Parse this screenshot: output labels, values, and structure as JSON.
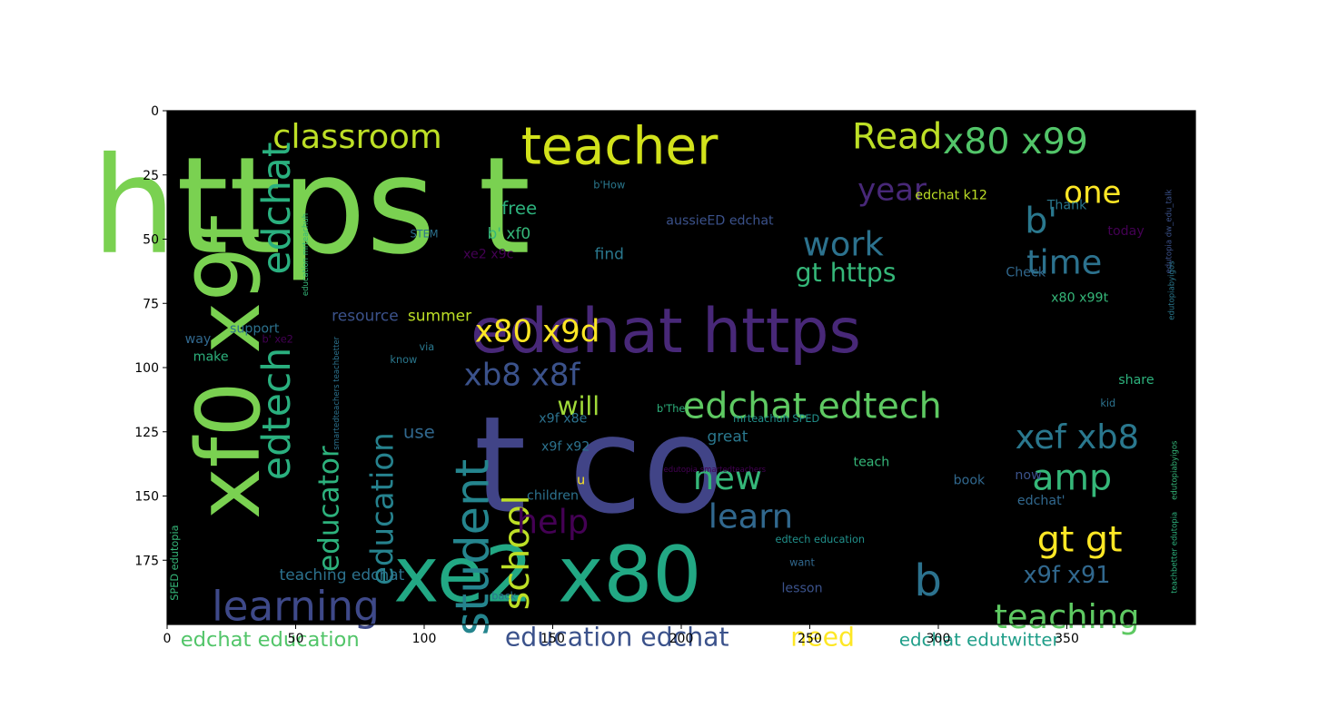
{
  "chart_data": {
    "type": "wordcloud",
    "title": "",
    "xlabel": "",
    "ylabel": "",
    "xlim": [
      0,
      400
    ],
    "ylim": [
      200,
      0
    ],
    "xticks": [
      0,
      50,
      100,
      150,
      200,
      250,
      300,
      350
    ],
    "yticks": [
      0,
      25,
      50,
      75,
      100,
      125,
      150,
      175
    ],
    "background": "#000000",
    "words": [
      {
        "text": "https t",
        "x": 56,
        "y": 37,
        "size": 52,
        "color": "#7ad151",
        "rotate": 0
      },
      {
        "text": "t co",
        "x": 168,
        "y": 138,
        "size": 52,
        "color": "#414487",
        "rotate": 0
      },
      {
        "text": "xe2 x80",
        "x": 148,
        "y": 181,
        "size": 30,
        "color": "#22a884",
        "rotate": 0
      },
      {
        "text": "edchat https",
        "x": 194,
        "y": 86,
        "size": 24,
        "color": "#482878",
        "rotate": 0
      },
      {
        "text": "xf0 x9f",
        "x": 24,
        "y": 100,
        "size": 34,
        "color": "#7ad151",
        "rotate": -90
      },
      {
        "text": "teacher",
        "x": 176,
        "y": 14,
        "size": 20,
        "color": "#d2e21b",
        "rotate": 0
      },
      {
        "text": "classroom",
        "x": 74,
        "y": 10,
        "size": 13,
        "color": "#bddf26",
        "rotate": 0
      },
      {
        "text": "Read",
        "x": 284,
        "y": 10,
        "size": 14,
        "color": "#bddf26",
        "rotate": 0
      },
      {
        "text": "x80 x99",
        "x": 330,
        "y": 12,
        "size": 14,
        "color": "#52c569",
        "rotate": 0
      },
      {
        "text": "edchat",
        "x": 43,
        "y": 38,
        "size": 15,
        "color": "#2ab07f",
        "rotate": -90
      },
      {
        "text": "edtech",
        "x": 43,
        "y": 118,
        "size": 15,
        "color": "#2ab07f",
        "rotate": -90
      },
      {
        "text": "b'",
        "x": 340,
        "y": 43,
        "size": 14,
        "color": "#2a788e",
        "rotate": 0
      },
      {
        "text": "year",
        "x": 282,
        "y": 31,
        "size": 12,
        "color": "#482878",
        "rotate": 0
      },
      {
        "text": "one",
        "x": 360,
        "y": 32,
        "size": 12,
        "color": "#fde725",
        "rotate": 0
      },
      {
        "text": "work",
        "x": 263,
        "y": 52,
        "size": 13,
        "color": "#2c728e",
        "rotate": 0
      },
      {
        "text": "time",
        "x": 349,
        "y": 59,
        "size": 13,
        "color": "#2c728e",
        "rotate": 0
      },
      {
        "text": "gt https",
        "x": 264,
        "y": 63,
        "size": 10,
        "color": "#35b779",
        "rotate": 0
      },
      {
        "text": "x80 x9d",
        "x": 144,
        "y": 86,
        "size": 12,
        "color": "#fde725",
        "rotate": 0
      },
      {
        "text": "xb8 x8f",
        "x": 138,
        "y": 103,
        "size": 12,
        "color": "#3b528b",
        "rotate": 0
      },
      {
        "text": "will",
        "x": 160,
        "y": 115,
        "size": 10,
        "color": "#a0da39",
        "rotate": 0
      },
      {
        "text": "edchat edtech",
        "x": 251,
        "y": 115,
        "size": 14,
        "color": "#5ec962",
        "rotate": 0
      },
      {
        "text": "student",
        "x": 119,
        "y": 170,
        "size": 18,
        "color": "#25858e",
        "rotate": -90
      },
      {
        "text": "school",
        "x": 136,
        "y": 172,
        "size": 14,
        "color": "#bddf26",
        "rotate": -90
      },
      {
        "text": "educator",
        "x": 63,
        "y": 155,
        "size": 11,
        "color": "#2db27d",
        "rotate": -90
      },
      {
        "text": "education",
        "x": 84,
        "y": 155,
        "size": 12,
        "color": "#26828e",
        "rotate": -90
      },
      {
        "text": "xef xb8",
        "x": 354,
        "y": 127,
        "size": 13,
        "color": "#2a788e",
        "rotate": 0
      },
      {
        "text": "amp",
        "x": 352,
        "y": 143,
        "size": 14,
        "color": "#35b779",
        "rotate": 0
      },
      {
        "text": "new",
        "x": 218,
        "y": 143,
        "size": 13,
        "color": "#35b779",
        "rotate": 0
      },
      {
        "text": "learn",
        "x": 227,
        "y": 158,
        "size": 13,
        "color": "#31688e",
        "rotate": 0
      },
      {
        "text": "help",
        "x": 150,
        "y": 160,
        "size": 13,
        "color": "#440154",
        "rotate": 0
      },
      {
        "text": "gt gt",
        "x": 355,
        "y": 167,
        "size": 14,
        "color": "#fde725",
        "rotate": 0
      },
      {
        "text": "b",
        "x": 296,
        "y": 183,
        "size": 17,
        "color": "#2c728e",
        "rotate": 0
      },
      {
        "text": "x9f x91",
        "x": 350,
        "y": 181,
        "size": 9,
        "color": "#31688e",
        "rotate": 0
      },
      {
        "text": "teaching",
        "x": 350,
        "y": 197,
        "size": 13,
        "color": "#5ec962",
        "rotate": 0
      },
      {
        "text": "learning",
        "x": 50,
        "y": 193,
        "size": 16,
        "color": "#3e4989",
        "rotate": 0
      },
      {
        "text": "education edchat",
        "x": 175,
        "y": 205,
        "size": 10,
        "color": "#3b528b",
        "rotate": 0
      },
      {
        "text": "edchat education",
        "x": 40,
        "y": 206,
        "size": 8,
        "color": "#52c569",
        "rotate": 0
      },
      {
        "text": "need",
        "x": 255,
        "y": 205,
        "size": 10,
        "color": "#fde725",
        "rotate": 0
      },
      {
        "text": "edchat edutwitter",
        "x": 316,
        "y": 206,
        "size": 7,
        "color": "#1f9e89",
        "rotate": 0
      },
      {
        "text": "teaching edchat",
        "x": 68,
        "y": 181,
        "size": 6,
        "color": "#2c728e",
        "rotate": 0
      },
      {
        "text": "free",
        "x": 137,
        "y": 38,
        "size": 7,
        "color": "#2db27d",
        "rotate": 0
      },
      {
        "text": "b' xf0",
        "x": 133,
        "y": 48,
        "size": 6,
        "color": "#35b779",
        "rotate": 0
      },
      {
        "text": "find",
        "x": 172,
        "y": 56,
        "size": 6,
        "color": "#2a788e",
        "rotate": 0
      },
      {
        "text": "xe2 x9c",
        "x": 125,
        "y": 56,
        "size": 5,
        "color": "#440154",
        "rotate": 0
      },
      {
        "text": "STEM",
        "x": 100,
        "y": 48,
        "size": 4,
        "color": "#2c728e",
        "rotate": 0
      },
      {
        "text": "b'How",
        "x": 172,
        "y": 29,
        "size": 4,
        "color": "#2a788e",
        "rotate": 0
      },
      {
        "text": "aussieED edchat",
        "x": 215,
        "y": 43,
        "size": 5,
        "color": "#3b528b",
        "rotate": 0
      },
      {
        "text": "edchat k12",
        "x": 305,
        "y": 33,
        "size": 5,
        "color": "#bddf26",
        "rotate": 0
      },
      {
        "text": "Thank",
        "x": 350,
        "y": 37,
        "size": 5,
        "color": "#2a788e",
        "rotate": 0
      },
      {
        "text": "today",
        "x": 373,
        "y": 47,
        "size": 5,
        "color": "#440154",
        "rotate": 0
      },
      {
        "text": "Check",
        "x": 334,
        "y": 63,
        "size": 5,
        "color": "#31688e",
        "rotate": 0
      },
      {
        "text": "x80 x99t",
        "x": 355,
        "y": 73,
        "size": 5,
        "color": "#35b779",
        "rotate": 0
      },
      {
        "text": "resource",
        "x": 77,
        "y": 80,
        "size": 6,
        "color": "#3b528b",
        "rotate": 0
      },
      {
        "text": "summer",
        "x": 106,
        "y": 80,
        "size": 6,
        "color": "#bddf26",
        "rotate": 0
      },
      {
        "text": "support",
        "x": 34,
        "y": 85,
        "size": 5,
        "color": "#2c728e",
        "rotate": 0
      },
      {
        "text": "way",
        "x": 12,
        "y": 89,
        "size": 5,
        "color": "#31688e",
        "rotate": 0
      },
      {
        "text": "b' xe2",
        "x": 43,
        "y": 89,
        "size": 4,
        "color": "#440154",
        "rotate": 0
      },
      {
        "text": "via",
        "x": 101,
        "y": 92,
        "size": 4,
        "color": "#2a788e",
        "rotate": 0
      },
      {
        "text": "make",
        "x": 17,
        "y": 96,
        "size": 5,
        "color": "#2db27d",
        "rotate": 0
      },
      {
        "text": "know",
        "x": 92,
        "y": 97,
        "size": 4,
        "color": "#2a788e",
        "rotate": 0
      },
      {
        "text": "use",
        "x": 98,
        "y": 125,
        "size": 7,
        "color": "#31688e",
        "rotate": 0
      },
      {
        "text": "x9f x8e",
        "x": 154,
        "y": 120,
        "size": 5,
        "color": "#2c728e",
        "rotate": 0
      },
      {
        "text": "b'The",
        "x": 196,
        "y": 116,
        "size": 4,
        "color": "#2db27d",
        "rotate": 0
      },
      {
        "text": "mrteachuh SPED",
        "x": 237,
        "y": 120,
        "size": 4,
        "color": "#21918c",
        "rotate": 0
      },
      {
        "text": "share",
        "x": 377,
        "y": 105,
        "size": 5,
        "color": "#2db27d",
        "rotate": 0
      },
      {
        "text": "kid",
        "x": 366,
        "y": 114,
        "size": 4,
        "color": "#2c728e",
        "rotate": 0
      },
      {
        "text": "x9f x92",
        "x": 155,
        "y": 131,
        "size": 5,
        "color": "#2c728e",
        "rotate": 0
      },
      {
        "text": "great",
        "x": 218,
        "y": 127,
        "size": 6,
        "color": "#2a788e",
        "rotate": 0
      },
      {
        "text": "teach",
        "x": 274,
        "y": 137,
        "size": 5,
        "color": "#35b779",
        "rotate": 0
      },
      {
        "text": "u",
        "x": 161,
        "y": 144,
        "size": 5,
        "color": "#fde725",
        "rotate": 0
      },
      {
        "text": "edutopia smartedteachers",
        "x": 213,
        "y": 140,
        "size": 3,
        "color": "#440154",
        "rotate": 0
      },
      {
        "text": "book",
        "x": 312,
        "y": 144,
        "size": 5,
        "color": "#31688e",
        "rotate": 0
      },
      {
        "text": "now",
        "x": 335,
        "y": 142,
        "size": 5,
        "color": "#3b528b",
        "rotate": 0
      },
      {
        "text": "children",
        "x": 150,
        "y": 150,
        "size": 5,
        "color": "#2c728e",
        "rotate": 0
      },
      {
        "text": "edchat'",
        "x": 340,
        "y": 152,
        "size": 5,
        "color": "#31688e",
        "rotate": 0
      },
      {
        "text": "edtech education",
        "x": 254,
        "y": 167,
        "size": 4,
        "color": "#21918c",
        "rotate": 0
      },
      {
        "text": "want",
        "x": 247,
        "y": 176,
        "size": 4,
        "color": "#31688e",
        "rotate": 0
      },
      {
        "text": "lesson",
        "x": 247,
        "y": 186,
        "size": 5,
        "color": "#3b528b",
        "rotate": 0
      },
      {
        "text": "back",
        "x": 131,
        "y": 189,
        "size": 4,
        "color": "#2c728e",
        "rotate": 0
      },
      {
        "text": "SPED edutopia",
        "x": 3,
        "y": 176,
        "size": 4,
        "color": "#35b779",
        "rotate": -90
      },
      {
        "text": "education mrteachuh",
        "x": 54,
        "y": 56,
        "size": 3,
        "color": "#35b779",
        "rotate": -90
      },
      {
        "text": "smartedteachers teachbetter",
        "x": 66,
        "y": 110,
        "size": 3,
        "color": "#2c728e",
        "rotate": -90
      },
      {
        "text": "edutopia dw_edu_talk",
        "x": 390,
        "y": 47,
        "size": 3,
        "color": "#3b528b",
        "rotate": -90
      },
      {
        "text": "edutopiabyigos",
        "x": 391,
        "y": 70,
        "size": 3,
        "color": "#2a788e",
        "rotate": -90
      },
      {
        "text": "teachbetter edutopia",
        "x": 392,
        "y": 172,
        "size": 3,
        "color": "#2db27d",
        "rotate": -90
      },
      {
        "text": "edutopiabyigos",
        "x": 392,
        "y": 140,
        "size": 3,
        "color": "#35b779",
        "rotate": -90
      }
    ]
  }
}
